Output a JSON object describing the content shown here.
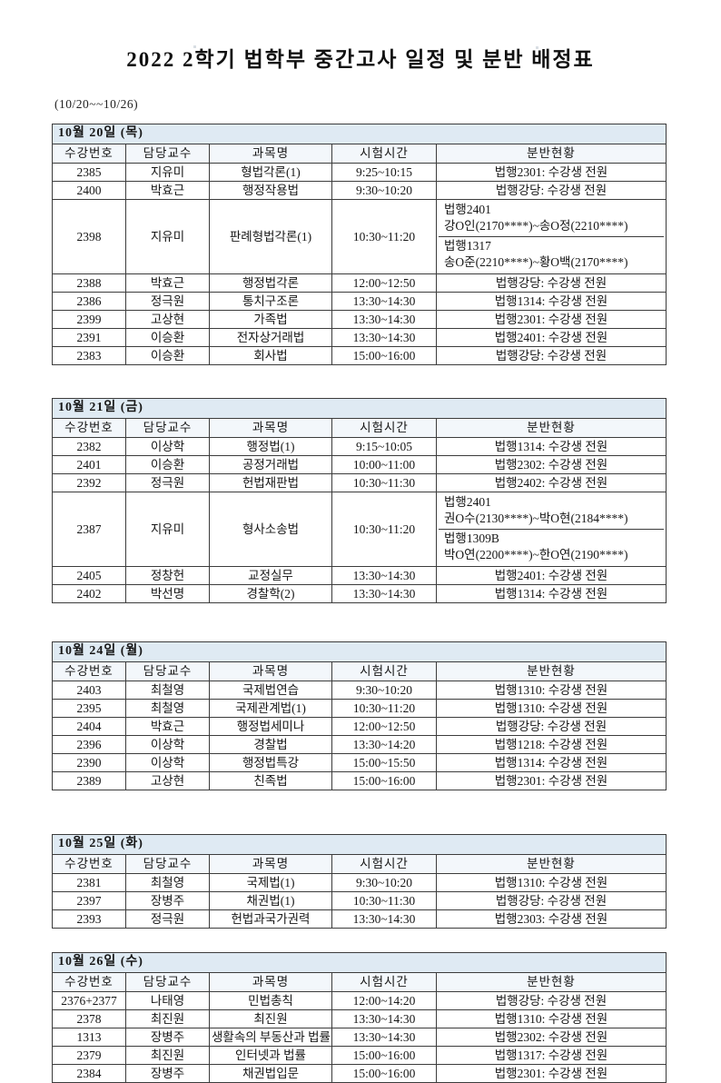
{
  "page": {
    "title": "2022 2학기 법학부 중간고사 일정 및 분반 배정표",
    "date_range": "(10/20~~10/26)"
  },
  "columns": [
    "수강번호",
    "담당교수",
    "과목명",
    "시험시간",
    "분반현황"
  ],
  "tables": [
    {
      "date": "10월 20일 (목)",
      "rows": [
        {
          "code": "2385",
          "professor": "지유미",
          "subject": "형법각론(1)",
          "time": "9:25~10:15",
          "assignment": "법행2301: 수강생 전원"
        },
        {
          "code": "2400",
          "professor": "박효근",
          "subject": "행정작용법",
          "time": "9:30~10:20",
          "assignment": "법행강당: 수강생 전원"
        },
        {
          "code": "2398",
          "professor": "지유미",
          "subject": "판례형법각론(1)",
          "time": "10:30~11:20",
          "assignment_split": [
            {
              "room": "법행2401",
              "range": "강O인(2170****)~송O정(2210****)"
            },
            {
              "room": "법행1317",
              "range": "송O준(2210****)~황O백(2170****)"
            }
          ]
        },
        {
          "code": "2388",
          "professor": "박효근",
          "subject": "행정법각론",
          "time": "12:00~12:50",
          "assignment": "법행강당: 수강생 전원"
        },
        {
          "code": "2386",
          "professor": "정극원",
          "subject": "통치구조론",
          "time": "13:30~14:30",
          "assignment": "법행1314: 수강생 전원"
        },
        {
          "code": "2399",
          "professor": "고상현",
          "subject": "가족법",
          "time": "13:30~14:30",
          "assignment": "법행2301: 수강생 전원"
        },
        {
          "code": "2391",
          "professor": "이승환",
          "subject": "전자상거래법",
          "time": "13:30~14:30",
          "assignment": "법행2401: 수강생 전원"
        },
        {
          "code": "2383",
          "professor": "이승환",
          "subject": "회사법",
          "time": "15:00~16:00",
          "assignment": "법행강당: 수강생 전원"
        }
      ]
    },
    {
      "date": "10월 21일 (금)",
      "rows": [
        {
          "code": "2382",
          "professor": "이상학",
          "subject": "행정법(1)",
          "time": "9:15~10:05",
          "assignment": "법행1314: 수강생 전원"
        },
        {
          "code": "2401",
          "professor": "이승환",
          "subject": "공정거래법",
          "time": "10:00~11:00",
          "assignment": "법행2302: 수강생 전원"
        },
        {
          "code": "2392",
          "professor": "정극원",
          "subject": "헌법재판법",
          "time": "10:30~11:30",
          "assignment": "법행2402: 수강생 전원"
        },
        {
          "code": "2387",
          "professor": "지유미",
          "subject": "형사소송법",
          "time": "10:30~11:20",
          "assignment_split": [
            {
              "room": "법행2401",
              "range": "권O수(2130****)~박O현(2184****)"
            },
            {
              "room": "법행1309B",
              "range": "박O연(2200****)~한O연(2190****)"
            }
          ]
        },
        {
          "code": "2405",
          "professor": "정창헌",
          "subject": "교정실무",
          "time": "13:30~14:30",
          "assignment": "법행2401: 수강생 전원"
        },
        {
          "code": "2402",
          "professor": "박선명",
          "subject": "경찰학(2)",
          "time": "13:30~14:30",
          "assignment": "법행1314: 수강생 전원"
        }
      ]
    },
    {
      "date": "10월 24일 (월)",
      "rows": [
        {
          "code": "2403",
          "professor": "최철영",
          "subject": "국제법연습",
          "time": "9:30~10:20",
          "assignment": "법행1310: 수강생 전원"
        },
        {
          "code": "2395",
          "professor": "최철영",
          "subject": "국제관계법(1)",
          "time": "10:30~11:20",
          "assignment": "법행1310: 수강생 전원"
        },
        {
          "code": "2404",
          "professor": "박효근",
          "subject": "행정법세미나",
          "time": "12:00~12:50",
          "assignment": "법행강당: 수강생 전원"
        },
        {
          "code": "2396",
          "professor": "이상학",
          "subject": "경찰법",
          "time": "13:30~14:20",
          "assignment": "법행1218: 수강생 전원"
        },
        {
          "code": "2390",
          "professor": "이상학",
          "subject": "행정법특강",
          "time": "15:00~15:50",
          "assignment": "법행1314: 수강생 전원"
        },
        {
          "code": "2389",
          "professor": "고상현",
          "subject": "친족법",
          "time": "15:00~16:00",
          "assignment": "법행2301: 수강생 전원"
        }
      ]
    },
    {
      "date": "10월 25일 (화)",
      "rows": [
        {
          "code": "2381",
          "professor": "최철영",
          "subject": "국제법(1)",
          "time": "9:30~10:20",
          "assignment": "법행1310: 수강생 전원"
        },
        {
          "code": "2397",
          "professor": "장병주",
          "subject": "채권법(1)",
          "time": "10:30~11:30",
          "assignment": "법행강당: 수강생 전원"
        },
        {
          "code": "2393",
          "professor": "정극원",
          "subject": "헌법과국가권력",
          "time": "13:30~14:30",
          "assignment": "법행2303: 수강생 전원"
        }
      ]
    },
    {
      "date": "10월 26일 (수)",
      "rows": [
        {
          "code": "2376+2377",
          "professor": "나태영",
          "subject": "민법총칙",
          "time": "12:00~14:20",
          "assignment": "법행강당: 수강생 전원"
        },
        {
          "code": "2378",
          "professor": "최진원",
          "subject": "최진원",
          "time": "13:30~14:30",
          "assignment": "법행1310: 수강생 전원"
        },
        {
          "code": "1313",
          "professor": "장병주",
          "subject": "생활속의 부동산과 법률",
          "time": "13:30~14:30",
          "assignment": "법행2302: 수강생 전원"
        },
        {
          "code": "2379",
          "professor": "최진원",
          "subject": "인터넷과 법률",
          "time": "15:00~16:00",
          "assignment": "법행1317: 수강생 전원"
        },
        {
          "code": "2384",
          "professor": "장병주",
          "subject": "채권법입문",
          "time": "15:00~16:00",
          "assignment": "법행2301: 수강생 전원"
        }
      ]
    }
  ],
  "colors": {
    "date_row_bg": "#dfeaf3",
    "header_row_bg": "#f3f7fb",
    "border": "#3c3c3c",
    "text": "#161616"
  }
}
